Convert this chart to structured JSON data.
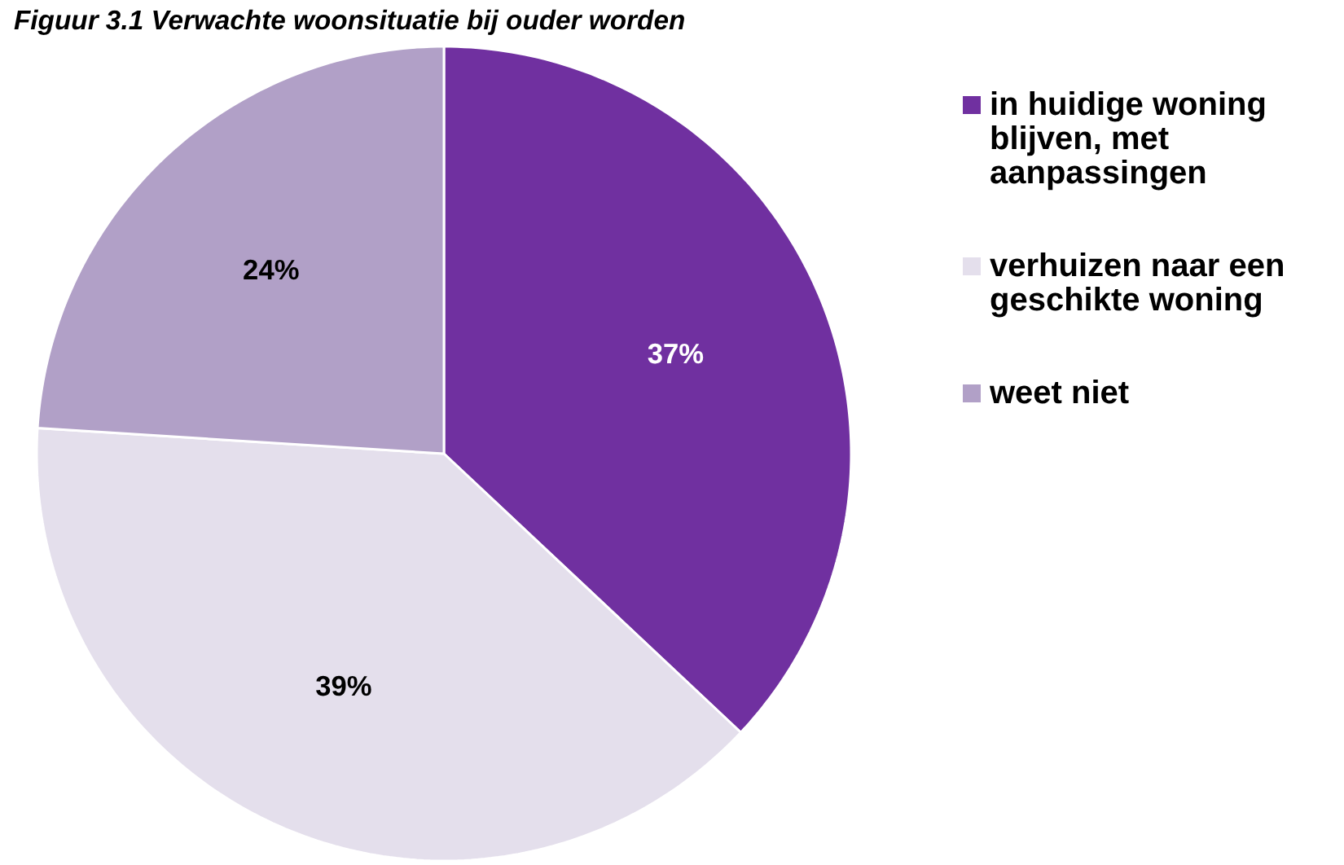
{
  "chart_data": {
    "type": "pie",
    "title": "Figuur 3.1 Verwachte woonsituatie bij ouder worden",
    "categories": [
      "in huidige woning blijven, met aanpassingen",
      "verhuizen naar een geschikte woning",
      "weet niet"
    ],
    "values": [
      37,
      39,
      24
    ],
    "colors": [
      "#7030a0",
      "#e4dfec",
      "#b1a0c7"
    ],
    "value_labels": [
      "37%",
      "39%",
      "24%"
    ],
    "legend": "right"
  }
}
